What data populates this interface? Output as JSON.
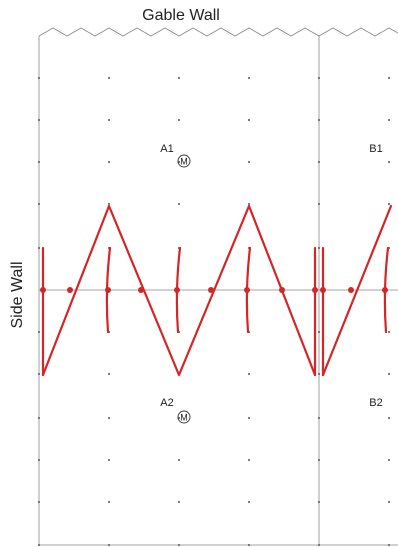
{
  "labels": {
    "gable_wall": "Gable Wall",
    "side_wall": "Side Wall"
  },
  "zones": [
    {
      "id": "a1",
      "label": "A1"
    },
    {
      "id": "b1",
      "label": "B1"
    },
    {
      "id": "a2",
      "label": "A2"
    },
    {
      "id": "b2",
      "label": "B2"
    }
  ],
  "markers": [
    {
      "id": "m1",
      "label": "M"
    },
    {
      "id": "m2",
      "label": "M"
    }
  ],
  "colors": {
    "line": "#d42626",
    "grid": "#999999",
    "dot": "#555555",
    "text": "#222222",
    "frame": "#888888"
  }
}
